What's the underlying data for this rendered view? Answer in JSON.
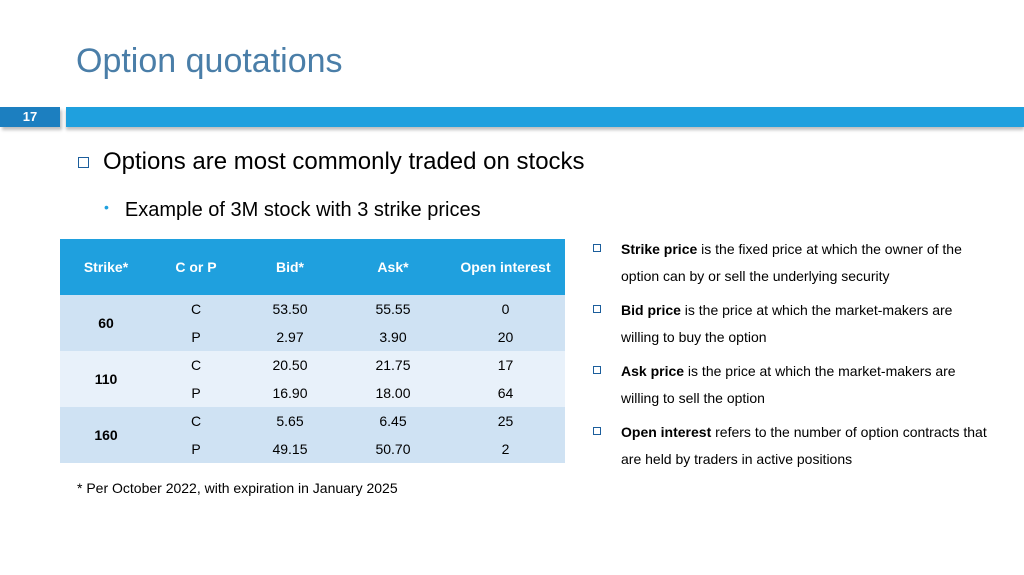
{
  "slide": {
    "title": "Option quotations",
    "number": "17"
  },
  "bullets": {
    "main": "Options are most commonly traded on stocks",
    "sub": "Example of 3M stock with 3 strike prices"
  },
  "table": {
    "headers": [
      "Strike*",
      "C or P",
      "Bid*",
      "Ask*",
      "Open interest"
    ],
    "groups": [
      {
        "strike": "60",
        "rows": [
          {
            "type": "C",
            "bid": "53.50",
            "ask": "55.55",
            "oi": "0"
          },
          {
            "type": "P",
            "bid": "2.97",
            "ask": "3.90",
            "oi": "20"
          }
        ]
      },
      {
        "strike": "110",
        "rows": [
          {
            "type": "C",
            "bid": "20.50",
            "ask": "21.75",
            "oi": "17"
          },
          {
            "type": "P",
            "bid": "16.90",
            "ask": "18.00",
            "oi": "64"
          }
        ]
      },
      {
        "strike": "160",
        "rows": [
          {
            "type": "C",
            "bid": "5.65",
            "ask": "6.45",
            "oi": "25"
          },
          {
            "type": "P",
            "bid": "49.15",
            "ask": "50.70",
            "oi": "2"
          }
        ]
      }
    ]
  },
  "footnote": "* Per October 2022, with expiration in January 2025",
  "definitions": [
    {
      "term": "Strike price",
      "text": " is the fixed price at which the owner of the option can by or sell the underlying security"
    },
    {
      "term": "Bid price",
      "text": " is the price at which the market-makers are willing to buy the option"
    },
    {
      "term": "Ask price",
      "text": " is the price at which the market-makers are willing to sell the option"
    },
    {
      "term": "Open interest",
      "text": " refers to the number of option contracts that are held by traders in active positions"
    }
  ],
  "colors": {
    "accent": "#1fa0de",
    "title": "#4a7ea8",
    "band_a": "#cfe2f3",
    "band_b": "#e8f1fa"
  }
}
